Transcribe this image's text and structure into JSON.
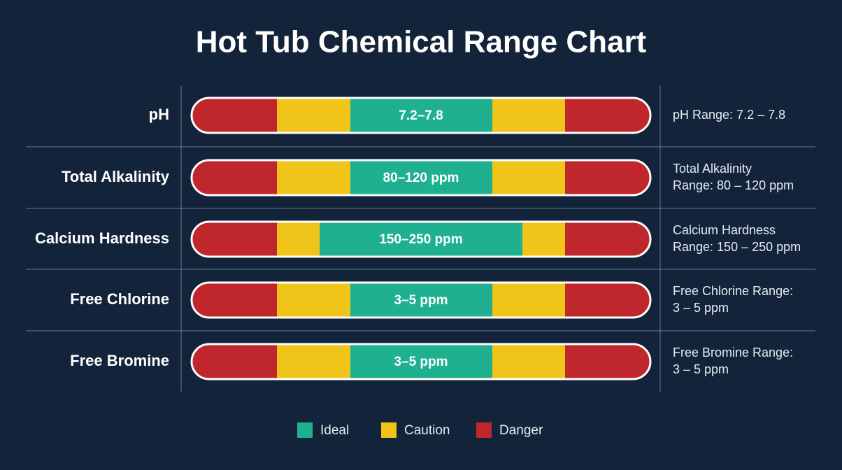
{
  "title": "Hot Tub Chemical Range Chart",
  "rows": [
    {
      "label": "pH",
      "ideal": "7.2–7.8",
      "description": [
        "pH Range: 7.2 – 7.8"
      ]
    },
    {
      "label": "Total Alkalinity",
      "ideal": "80–120 ppm",
      "description": [
        "Total Alkalinity",
        "Range: 80 – 120 ppm"
      ]
    },
    {
      "label": "Calcium Hardness",
      "ideal": "150–250 ppm",
      "description": [
        "Calcium Hardness",
        "Range: 150 – 250 ppm"
      ]
    },
    {
      "label": "Free Chlorine",
      "ideal": "3–5 ppm",
      "description": [
        "Free Chlorine Range:",
        "3 – 5 ppm"
      ]
    },
    {
      "label": "Free Bromine",
      "ideal": "3–5 ppm",
      "description": [
        "Free Bromine Range:",
        "3 – 5 ppm"
      ]
    }
  ],
  "legend": [
    "Ideal",
    "Caution",
    "Danger"
  ]
}
